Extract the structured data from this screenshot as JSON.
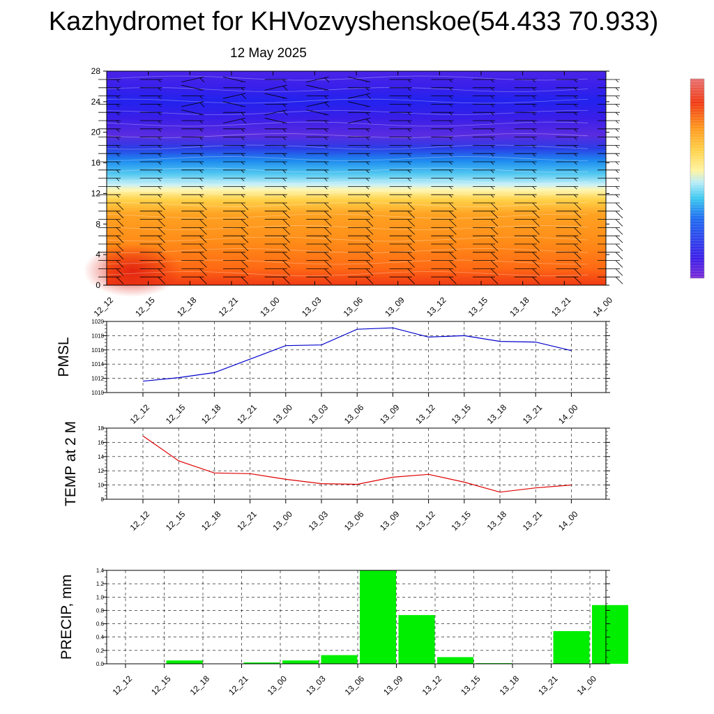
{
  "title": "Kazhydromet for KHVozvyshenskoe(54.433 70.933)",
  "subtitle": "12 May 2025",
  "chart_data": [
    {
      "type": "heatmap",
      "title": "",
      "x_categories": [
        "12_12",
        "12_15",
        "12_18",
        "12_21",
        "13_00",
        "13_03",
        "13_06",
        "13_09",
        "13_12",
        "13_15",
        "13_18",
        "13_21",
        "14_00"
      ],
      "yticks": [
        0,
        4,
        8,
        12,
        16,
        20,
        24,
        28
      ],
      "ylim": [
        0,
        28
      ],
      "note_colorbar": "unlabeled colorbar blue (low) to red (high)",
      "color_scale": [
        "#7a2cd8",
        "#3c1ee8",
        "#2a2af0",
        "#1e6cf0",
        "#3ac8f0",
        "#b8ecf8",
        "#fff4a0",
        "#ffd24a",
        "#ff9a1e",
        "#ff6a14",
        "#f03a14",
        "#e01e10"
      ],
      "overlay": "wind barbs"
    },
    {
      "type": "line",
      "ylabel": "PMSL",
      "x": [
        "12_12",
        "12_15",
        "12_18",
        "12_21",
        "13_00",
        "13_03",
        "13_06",
        "13_09",
        "13_12",
        "13_15",
        "13_18",
        "13_21",
        "14_00"
      ],
      "yticks": [
        1010,
        1012,
        1014,
        1016,
        1018,
        1020
      ],
      "ylim": [
        1010,
        1020
      ],
      "series": [
        {
          "values": [
            1011.6,
            1012.1,
            1012.8,
            1014.7,
            1016.6,
            1016.7,
            1018.9,
            1019.1,
            1017.8,
            1018.0,
            1017.2,
            1017.1,
            1015.9
          ],
          "color": "#0000cc"
        }
      ]
    },
    {
      "type": "line",
      "ylabel": "TEMP at 2 M",
      "x": [
        "12_12",
        "12_15",
        "12_18",
        "12_21",
        "13_00",
        "13_03",
        "13_06",
        "13_09",
        "13_12",
        "13_15",
        "13_18",
        "13_21",
        "14_00"
      ],
      "yticks": [
        8,
        10,
        12,
        14,
        16,
        18
      ],
      "ylim": [
        8,
        18
      ],
      "series": [
        {
          "values": [
            16.9,
            13.4,
            11.7,
            11.6,
            10.8,
            10.2,
            10.1,
            11.1,
            11.5,
            10.4,
            9.0,
            9.6,
            10.0
          ],
          "color": "#dd0000"
        }
      ]
    },
    {
      "type": "bar",
      "ylabel": "PRECIP, mm",
      "categories": [
        "12_12",
        "12_15",
        "12_18",
        "12_21",
        "13_00",
        "13_03",
        "13_06",
        "13_09",
        "13_12",
        "13_15",
        "13_18",
        "13_21",
        "14_00"
      ],
      "values": [
        0.0,
        0.05,
        0.0,
        0.02,
        0.05,
        0.13,
        1.4,
        0.73,
        0.1,
        0.01,
        0.0,
        0.49,
        0.88
      ],
      "yticks": [
        "0.0",
        "0.2",
        "0.4",
        "0.6",
        "0.8",
        "1.0",
        "1.2",
        "1.4"
      ],
      "ylim": [
        0,
        1.4
      ],
      "color": "#00ee00"
    }
  ]
}
